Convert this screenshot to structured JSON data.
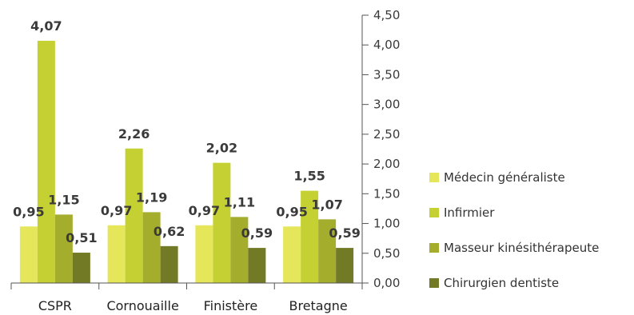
{
  "chart_data": {
    "type": "bar",
    "categories": [
      "CSPR",
      "Cornouaille",
      "Finistère",
      "Bretagne"
    ],
    "series": [
      {
        "name": "Médecin généraliste",
        "color": "#e6e65a",
        "values": [
          0.95,
          0.97,
          0.97,
          0.95
        ],
        "labels": [
          "0,95",
          "0,97",
          "0,97",
          "0,95"
        ]
      },
      {
        "name": "Infirmier",
        "color": "#c5d132",
        "values": [
          4.07,
          2.26,
          2.02,
          1.55
        ],
        "labels": [
          "4,07",
          "2,26",
          "2,02",
          "1,55"
        ]
      },
      {
        "name": "Masseur kinésithérapeute",
        "color": "#a4ad2c",
        "values": [
          1.15,
          1.19,
          1.11,
          1.07
        ],
        "labels": [
          "1,15",
          "1,19",
          "1,11",
          "1,07"
        ]
      },
      {
        "name": "Chirurgien dentiste",
        "color": "#737a26",
        "values": [
          0.51,
          0.62,
          0.59,
          0.59
        ],
        "labels": [
          "0,51",
          "0,62",
          "0,59",
          "0,59"
        ]
      }
    ],
    "ylim": [
      0,
      4.5
    ],
    "yticks": [
      0,
      0.5,
      1,
      1.5,
      2,
      2.5,
      3,
      3.5,
      4,
      4.5
    ],
    "ytick_labels": [
      "0,00",
      "0,50",
      "1,00",
      "1,50",
      "2,00",
      "2,50",
      "3,00",
      "3,50",
      "4,00",
      "4,50"
    ],
    "y_axis_side": "right",
    "grid": false,
    "legend_position": "right"
  }
}
